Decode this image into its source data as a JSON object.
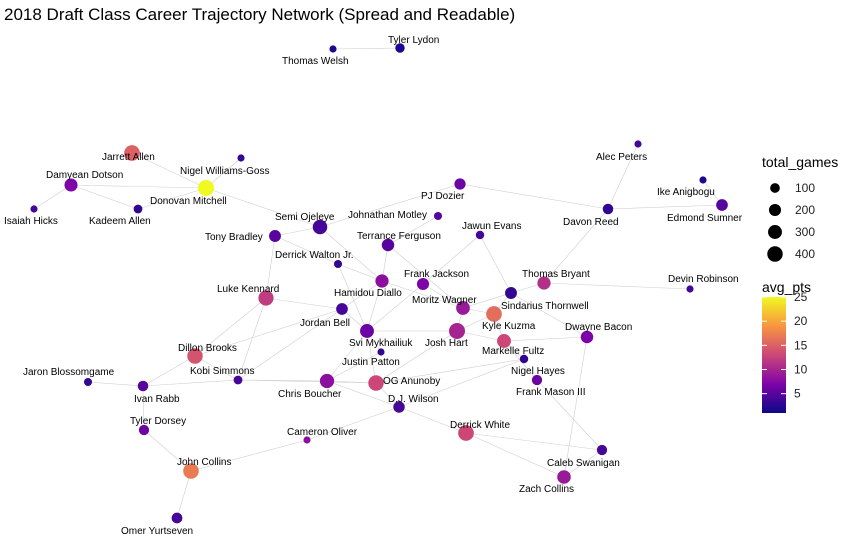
{
  "chart_data": {
    "type": "network",
    "title": "2018 Draft Class Career Trajectory Network (Spread and Readable)",
    "size_legend": {
      "title": "total_games",
      "breaks": [
        100,
        200,
        300,
        400
      ]
    },
    "color_legend": {
      "title": "avg_pts",
      "breaks": [
        5,
        10,
        15,
        20,
        25
      ],
      "range": [
        1,
        25
      ],
      "palette": "plasma"
    },
    "nodes": [
      {
        "name": "Tyler Lydon",
        "total_games": 90,
        "avg_pts": 2
      },
      {
        "name": "Thomas Welsh",
        "total_games": 30,
        "avg_pts": 2
      },
      {
        "name": "Alec Peters",
        "total_games": 30,
        "avg_pts": 4
      },
      {
        "name": "Jarrett Allen",
        "total_games": 420,
        "avg_pts": 15
      },
      {
        "name": "Nigel Williams-Goss",
        "total_games": 30,
        "avg_pts": 3
      },
      {
        "name": "Damyean Dotson",
        "total_games": 250,
        "avg_pts": 7
      },
      {
        "name": "Donovan Mitchell",
        "total_games": 440,
        "avg_pts": 25
      },
      {
        "name": "Ike Anigbogu",
        "total_games": 30,
        "avg_pts": 2
      },
      {
        "name": "PJ Dozier",
        "total_games": 160,
        "avg_pts": 6
      },
      {
        "name": "Isaiah Hicks",
        "total_games": 30,
        "avg_pts": 4
      },
      {
        "name": "Kadeem Allen",
        "total_games": 70,
        "avg_pts": 3
      },
      {
        "name": "Edmond Sumner",
        "total_games": 180,
        "avg_pts": 5
      },
      {
        "name": "Davon Reed",
        "total_games": 130,
        "avg_pts": 3
      },
      {
        "name": "Johnathan Motley",
        "total_games": 50,
        "avg_pts": 5
      },
      {
        "name": "Semi Ojeleye",
        "total_games": 340,
        "avg_pts": 4
      },
      {
        "name": "Jawun Evans",
        "total_games": 60,
        "avg_pts": 4
      },
      {
        "name": "Tony Bradley",
        "total_games": 190,
        "avg_pts": 5
      },
      {
        "name": "Terrance Ferguson",
        "total_games": 220,
        "avg_pts": 5
      },
      {
        "name": "Derrick Walton Jr.",
        "total_games": 50,
        "avg_pts": 3
      },
      {
        "name": "Devin Robinson",
        "total_games": 30,
        "avg_pts": 4
      },
      {
        "name": "Frank Jackson",
        "total_games": 200,
        "avg_pts": 7
      },
      {
        "name": "Thomas Bryant",
        "total_games": 260,
        "avg_pts": 11
      },
      {
        "name": "Luke Kennard",
        "total_games": 380,
        "avg_pts": 12
      },
      {
        "name": "Hamidou Diallo",
        "total_games": 260,
        "avg_pts": 8
      },
      {
        "name": "Moritz Wagner",
        "total_games": 290,
        "avg_pts": 9
      },
      {
        "name": "Sindarius Thornwell",
        "total_games": 190,
        "avg_pts": 3
      },
      {
        "name": "Kyle Kuzma",
        "total_games": 420,
        "avg_pts": 16
      },
      {
        "name": "Jordan Bell",
        "total_games": 180,
        "avg_pts": 4
      },
      {
        "name": "Dwayne Bacon",
        "total_games": 220,
        "avg_pts": 7
      },
      {
        "name": "Josh Hart",
        "total_games": 440,
        "avg_pts": 10
      },
      {
        "name": "Svi Mykhailiuk",
        "total_games": 300,
        "avg_pts": 6
      },
      {
        "name": "Markelle Fultz",
        "total_games": 300,
        "avg_pts": 13
      },
      {
        "name": "Dillon Brooks",
        "total_games": 400,
        "avg_pts": 14
      },
      {
        "name": "Kobi Simmons",
        "total_games": 70,
        "avg_pts": 4
      },
      {
        "name": "Justin Patton",
        "total_games": 30,
        "avg_pts": 3
      },
      {
        "name": "Nigel Hayes",
        "total_games": 60,
        "avg_pts": 3
      },
      {
        "name": "Jaron Blossomgame",
        "total_games": 50,
        "avg_pts": 3
      },
      {
        "name": "Ivan Rabb",
        "total_games": 130,
        "avg_pts": 5
      },
      {
        "name": "Chris Boucher",
        "total_games": 320,
        "avg_pts": 8
      },
      {
        "name": "OG Anunoby",
        "total_games": 400,
        "avg_pts": 13
      },
      {
        "name": "Frank Mason III",
        "total_games": 120,
        "avg_pts": 6
      },
      {
        "name": "D.J. Wilson",
        "total_games": 170,
        "avg_pts": 4
      },
      {
        "name": "Tyler Dorsey",
        "total_games": 120,
        "avg_pts": 6
      },
      {
        "name": "Derrick White",
        "total_games": 420,
        "avg_pts": 13
      },
      {
        "name": "Cameron Oliver",
        "total_games": 30,
        "avg_pts": 8
      },
      {
        "name": "John Collins",
        "total_games": 410,
        "avg_pts": 17
      },
      {
        "name": "Caleb Swanigan",
        "total_games": 120,
        "avg_pts": 4
      },
      {
        "name": "Zach Collins",
        "total_games": 280,
        "avg_pts": 9
      },
      {
        "name": "Omer Yurtseven",
        "total_games": 140,
        "avg_pts": 4
      }
    ],
    "edges": [
      [
        "Thomas Welsh",
        "Tyler Lydon"
      ],
      [
        "Jarrett Allen",
        "Donovan Mitchell"
      ],
      [
        "Nigel Williams-Goss",
        "Donovan Mitchell"
      ],
      [
        "Damyean Dotson",
        "Donovan Mitchell"
      ],
      [
        "Damyean Dotson",
        "Kadeem Allen"
      ],
      [
        "Damyean Dotson",
        "Isaiah Hicks"
      ],
      [
        "Donovan Mitchell",
        "Semi Ojeleye"
      ],
      [
        "Donovan Mitchell",
        "Kadeem Allen"
      ],
      [
        "Semi Ojeleye",
        "PJ Dozier"
      ],
      [
        "Semi Ojeleye",
        "Tony Bradley"
      ],
      [
        "Semi Ojeleye",
        "Hamidou Diallo"
      ],
      [
        "Tony Bradley",
        "Derrick Walton Jr."
      ],
      [
        "Tony Bradley",
        "Luke Kennard"
      ],
      [
        "PJ Dozier",
        "Davon Reed"
      ],
      [
        "Davon Reed",
        "Alec Peters"
      ],
      [
        "Davon Reed",
        "Edmond Sumner"
      ],
      [
        "Davon Reed",
        "Thomas Bryant"
      ],
      [
        "Ike Anigbogu",
        "Edmond Sumner"
      ],
      [
        "Johnathan Motley",
        "Terrance Ferguson"
      ],
      [
        "Terrance Ferguson",
        "Hamidou Diallo"
      ],
      [
        "Terrance Ferguson",
        "Moritz Wagner"
      ],
      [
        "Jawun Evans",
        "Sindarius Thornwell"
      ],
      [
        "Jawun Evans",
        "Frank Jackson"
      ],
      [
        "Derrick Walton Jr.",
        "Hamidou Diallo"
      ],
      [
        "Derrick Walton Jr.",
        "Svi Mykhailiuk"
      ],
      [
        "Frank Jackson",
        "Moritz Wagner"
      ],
      [
        "Frank Jackson",
        "Svi Mykhailiuk"
      ],
      [
        "Thomas Bryant",
        "Sindarius Thornwell"
      ],
      [
        "Thomas Bryant",
        "Devin Robinson"
      ],
      [
        "Hamidou Diallo",
        "Moritz Wagner"
      ],
      [
        "Hamidou Diallo",
        "Jordan Bell"
      ],
      [
        "Hamidou Diallo",
        "Svi Mykhailiuk"
      ],
      [
        "Moritz Wagner",
        "Kyle Kuzma"
      ],
      [
        "Moritz Wagner",
        "Josh Hart"
      ],
      [
        "Moritz Wagner",
        "Sindarius Thornwell"
      ],
      [
        "Sindarius Thornwell",
        "Kyle Kuzma"
      ],
      [
        "Sindarius Thornwell",
        "Dwayne Bacon"
      ],
      [
        "Kyle Kuzma",
        "Josh Hart"
      ],
      [
        "Kyle Kuzma",
        "Markelle Fultz"
      ],
      [
        "Josh Hart",
        "Svi Mykhailiuk"
      ],
      [
        "Josh Hart",
        "Markelle Fultz"
      ],
      [
        "Josh Hart",
        "OG Anunoby"
      ],
      [
        "Markelle Fultz",
        "Dwayne Bacon"
      ],
      [
        "Markelle Fultz",
        "Nigel Hayes"
      ],
      [
        "Markelle Fultz",
        "Frank Mason III"
      ],
      [
        "Svi Mykhailiuk",
        "Jordan Bell"
      ],
      [
        "Svi Mykhailiuk",
        "Justin Patton"
      ],
      [
        "Svi Mykhailiuk",
        "OG Anunoby"
      ],
      [
        "Svi Mykhailiuk",
        "Chris Boucher"
      ],
      [
        "Luke Kennard",
        "Jordan Bell"
      ],
      [
        "Luke Kennard",
        "Dillon Brooks"
      ],
      [
        "Luke Kennard",
        "Kobi Simmons"
      ],
      [
        "Jordan Bell",
        "Dillon Brooks"
      ],
      [
        "Jordan Bell",
        "Kobi Simmons"
      ],
      [
        "Dillon Brooks",
        "Ivan Rabb"
      ],
      [
        "Dillon Brooks",
        "Kobi Simmons"
      ],
      [
        "Kobi Simmons",
        "Ivan Rabb"
      ],
      [
        "Kobi Simmons",
        "Chris Boucher"
      ],
      [
        "Kobi Simmons",
        "OG Anunoby"
      ],
      [
        "Ivan Rabb",
        "Jaron Blossomgame"
      ],
      [
        "Ivan Rabb",
        "Tyler Dorsey"
      ],
      [
        "Justin Patton",
        "Chris Boucher"
      ],
      [
        "Chris Boucher",
        "OG Anunoby"
      ],
      [
        "Chris Boucher",
        "D.J. Wilson"
      ],
      [
        "OG Anunoby",
        "D.J. Wilson"
      ],
      [
        "OG Anunoby",
        "Nigel Hayes"
      ],
      [
        "D.J. Wilson",
        "Derrick White"
      ],
      [
        "D.J. Wilson",
        "Cameron Oliver"
      ],
      [
        "D.J. Wilson",
        "Nigel Hayes"
      ],
      [
        "Cameron Oliver",
        "John Collins"
      ],
      [
        "Tyler Dorsey",
        "John Collins"
      ],
      [
        "John Collins",
        "Omer Yurtseven"
      ],
      [
        "Derrick White",
        "Zach Collins"
      ],
      [
        "Derrick White",
        "Caleb Swanigan"
      ],
      [
        "Zach Collins",
        "Caleb Swanigan"
      ],
      [
        "Zach Collins",
        "Dwayne Bacon"
      ],
      [
        "Frank Mason III",
        "Caleb Swanigan"
      ]
    ]
  }
}
